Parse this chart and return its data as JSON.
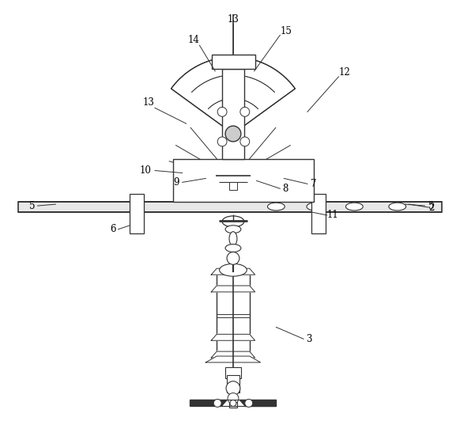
{
  "bg_color": "#ffffff",
  "lc": "#333333",
  "fig_w": 5.82,
  "fig_h": 5.32,
  "dpi": 100
}
